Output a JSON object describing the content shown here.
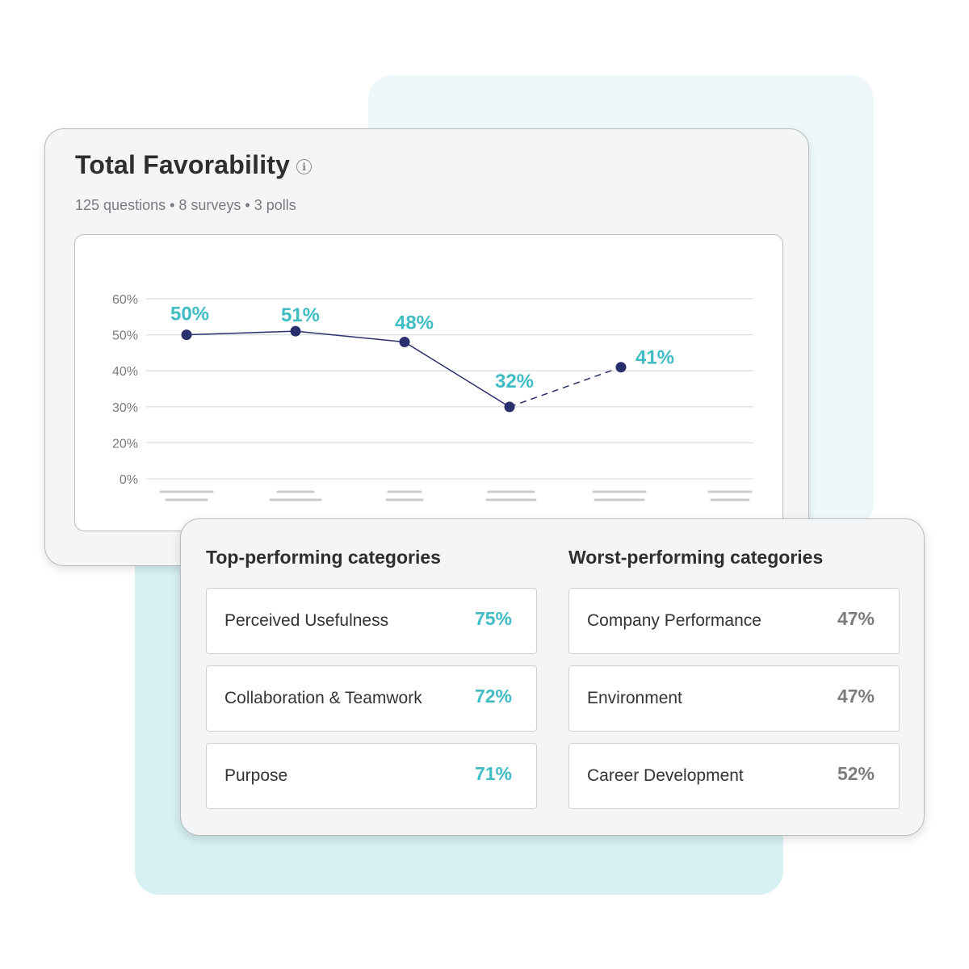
{
  "header": {
    "title": "Total Favorability",
    "subtitle": "125 questions • 8 surveys • 3 polls",
    "info_icon": "i"
  },
  "chart_data": {
    "type": "line",
    "title": "",
    "xlabel": "",
    "ylabel": "",
    "y_ticks": [
      "0%",
      "20%",
      "30%",
      "40%",
      "50%",
      "60%"
    ],
    "x_categories_placeholder_count": 6,
    "series": [
      {
        "values": [
          50,
          51,
          48,
          32,
          41
        ],
        "labels": [
          "50%",
          "51%",
          "48%",
          "32%",
          "41%"
        ],
        "dashed_last_segment": true
      }
    ],
    "grid": true,
    "colors": {
      "line": "#2a2f6e",
      "label": "#3fbcc4",
      "grid": "#dcdfe2"
    }
  },
  "categories": {
    "top": {
      "title": "Top-performing categories",
      "items": [
        {
          "name": "Perceived Usefulness",
          "value": "75%"
        },
        {
          "name": "Collaboration & Teamwork",
          "value": "72%"
        },
        {
          "name": "Purpose",
          "value": "71%"
        }
      ]
    },
    "worst": {
      "title": "Worst-performing categories",
      "items": [
        {
          "name": "Company Performance",
          "value": "47%"
        },
        {
          "name": "Environment",
          "value": "47%"
        },
        {
          "name": "Career Development",
          "value": "52%"
        }
      ]
    }
  }
}
